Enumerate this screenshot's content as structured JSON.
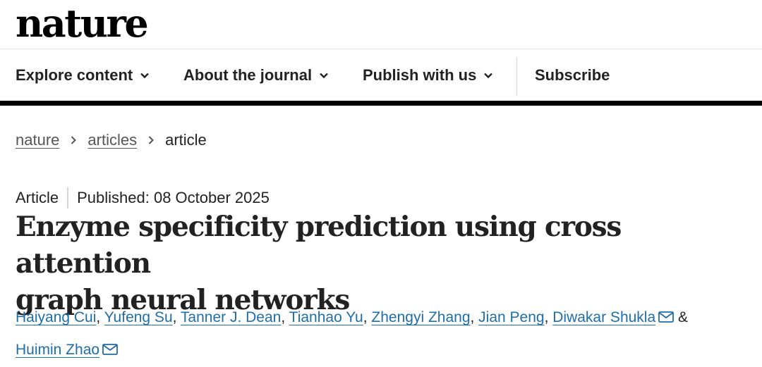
{
  "site": {
    "logo": "nature"
  },
  "nav": {
    "items": [
      {
        "label": "Explore content",
        "dropdown": true
      },
      {
        "label": "About the journal",
        "dropdown": true
      },
      {
        "label": "Publish with us",
        "dropdown": true
      },
      {
        "label": "Subscribe",
        "dropdown": false
      }
    ]
  },
  "breadcrumb": {
    "items": [
      {
        "label": "nature",
        "link": true
      },
      {
        "label": "articles",
        "link": true
      },
      {
        "label": "article",
        "link": false
      }
    ]
  },
  "article": {
    "type": "Article",
    "published": "Published: 08 October 2025",
    "title_line1": "Enzyme specificity prediction using cross attention",
    "title_line2": "graph neural networks",
    "authors": [
      {
        "name": "Haiyang Cui",
        "email": false
      },
      {
        "name": "Yufeng Su",
        "email": false
      },
      {
        "name": "Tanner J. Dean",
        "email": false
      },
      {
        "name": "Tianhao Yu",
        "email": false
      },
      {
        "name": "Zhengyi Zhang",
        "email": false
      },
      {
        "name": "Jian Peng",
        "email": false
      },
      {
        "name": "Diwakar Shukla",
        "email": true
      },
      {
        "name": "Huimin Zhao",
        "email": true
      }
    ],
    "author_separator": ", ",
    "author_last_separator": " & "
  },
  "colors": {
    "link": "#1f6ea8",
    "text": "#222222",
    "rule": "#000000"
  },
  "icons": {
    "dropdown": "chevron-down-icon",
    "breadcrumb_separator": "chevron-right-icon",
    "email": "envelope-icon"
  }
}
